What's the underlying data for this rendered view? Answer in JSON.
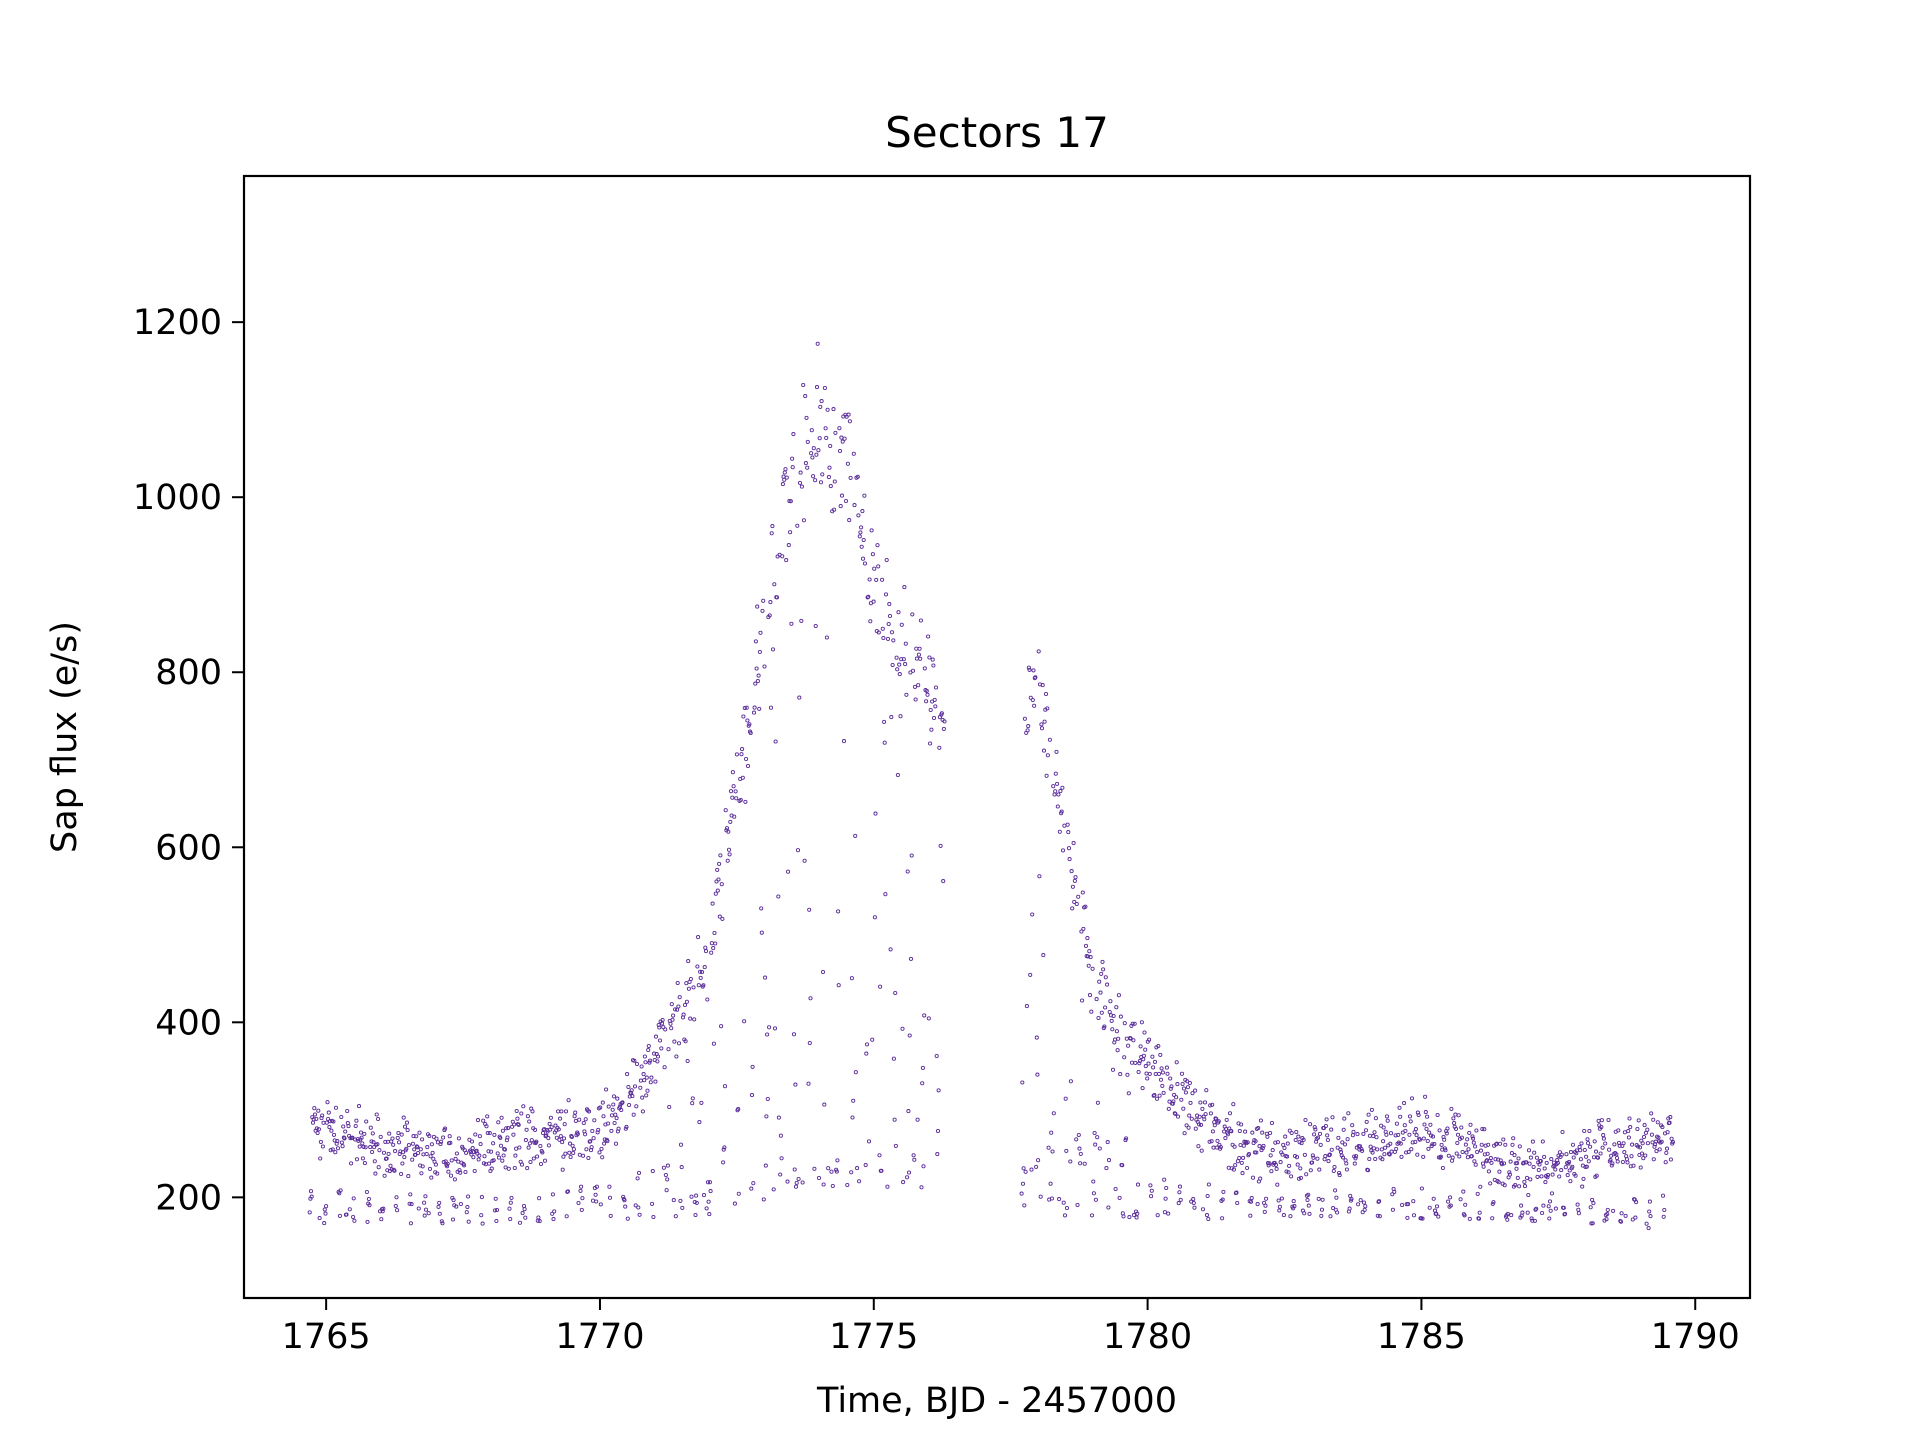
{
  "chart_data": {
    "type": "scatter",
    "title": "Sectors 17",
    "xlabel": "Time, BJD - 2457000",
    "ylabel": "Sap flux (e/s)",
    "xlim": [
      1763.5,
      1791.0
    ],
    "ylim": [
      85,
      1367
    ],
    "xticks": [
      1765,
      1770,
      1775,
      1780,
      1785,
      1790
    ],
    "yticks": [
      200,
      400,
      600,
      800,
      1000,
      1200
    ],
    "grid": false,
    "legend": "none",
    "marker": "open circle",
    "colors": {
      "points": "#5b2d9a",
      "axes": "#000000"
    },
    "segments": [
      {
        "x_start": 1764.7,
        "x_end": 1776.3
      },
      {
        "x_start": 1777.7,
        "x_end": 1789.6
      }
    ],
    "envelope": {
      "x": [
        1764.7,
        1766.0,
        1767.5,
        1769.0,
        1770.0,
        1771.0,
        1772.0,
        1773.0,
        1773.5,
        1774.0,
        1774.5,
        1775.0,
        1775.5,
        1776.3,
        1777.7,
        1778.0,
        1778.5,
        1779.0,
        1779.5,
        1780.0,
        1781.0,
        1782.0,
        1783.0,
        1784.0,
        1785.0,
        1786.0,
        1787.0,
        1788.0,
        1789.0,
        1789.6
      ],
      "upper_flux": [
        290,
        270,
        260,
        285,
        285,
        380,
        500,
        900,
        1080,
        1160,
        1100,
        940,
        880,
        800,
        860,
        800,
        650,
        470,
        420,
        370,
        300,
        265,
        265,
        275,
        290,
        260,
        245,
        255,
        275,
        280
      ],
      "lower_flux": [
        170,
        170,
        170,
        170,
        175,
        175,
        180,
        190,
        200,
        210,
        210,
        210,
        210,
        210,
        190,
        180,
        175,
        175,
        175,
        170,
        175,
        175,
        175,
        175,
        175,
        175,
        170,
        170,
        165,
        160
      ]
    }
  }
}
